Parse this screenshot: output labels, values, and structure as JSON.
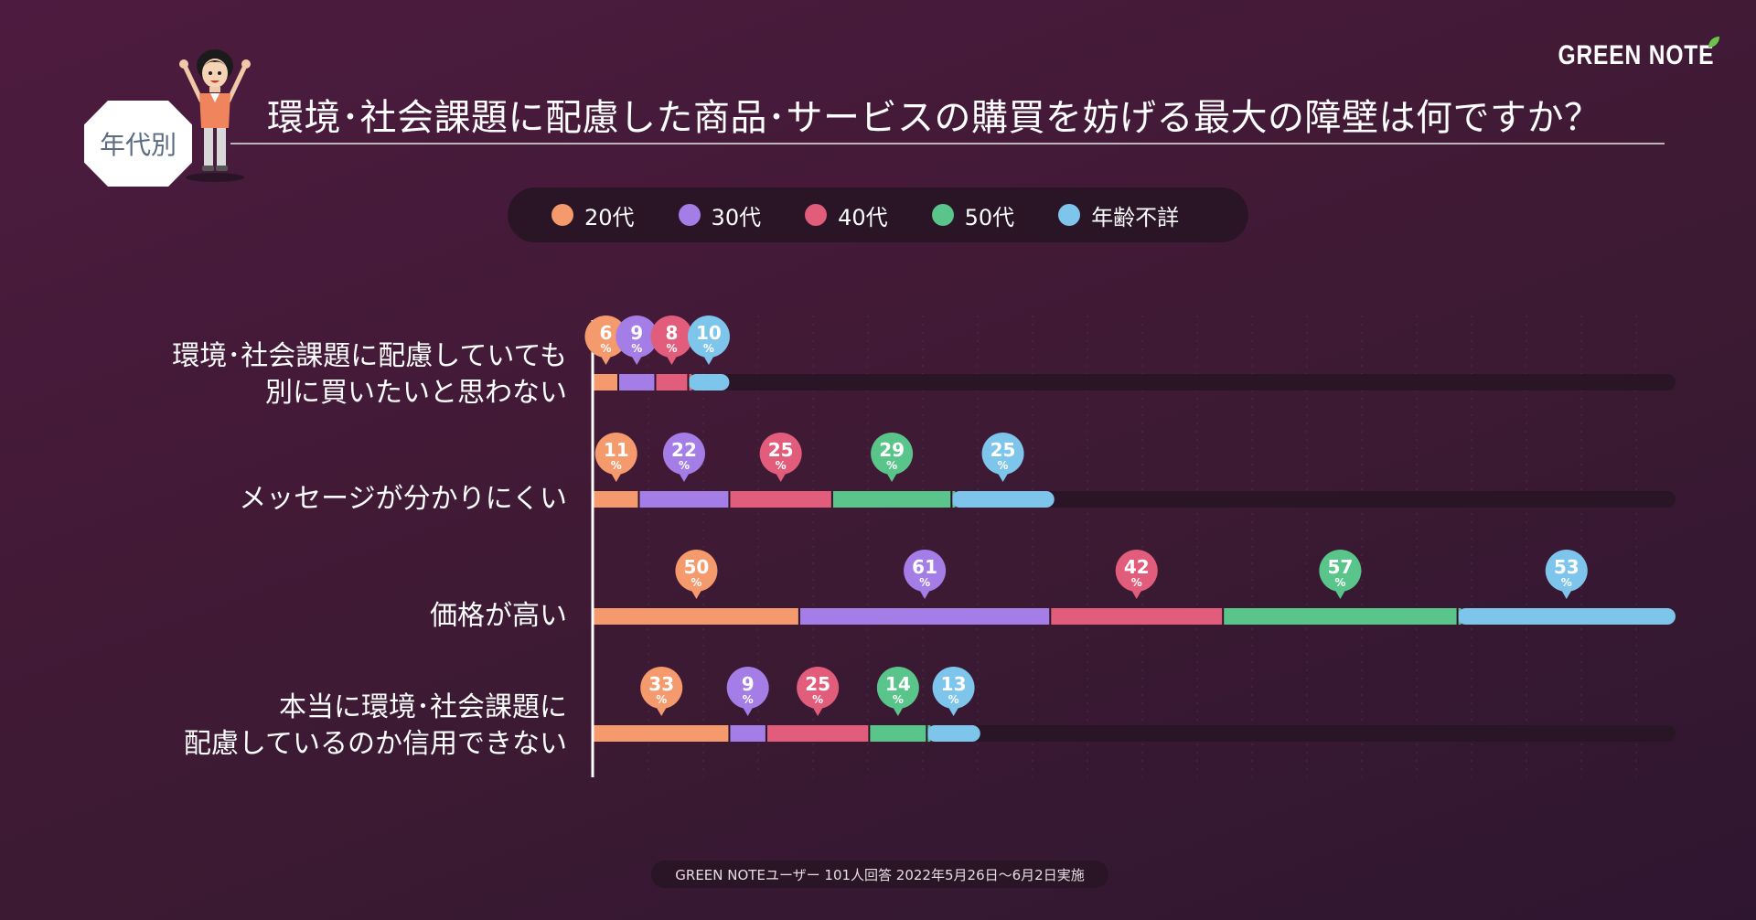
{
  "brand": "GREEN NOTE",
  "tag": "年代別",
  "title": "環境･社会課題に配慮した商品･サービスの購買を妨げる最大の障壁は何ですか？",
  "footer": "GREEN NOTEユーザー 101人回答 2022年5月26日〜6月2日実施",
  "colors": {
    "background": "#3d1a33",
    "track": "#2a1526",
    "series": [
      "#f49a6c",
      "#a47de6",
      "#e25c7b",
      "#5ac58a",
      "#7ec5ec"
    ]
  },
  "icons": [
    "leaf-icon",
    "mascot-illustration"
  ],
  "chart_data": {
    "type": "bar",
    "stacked": true,
    "orientation": "horizontal",
    "unit": "%",
    "categories": [
      [
        "環境･社会課題に配慮していても",
        "別に買いたいと思わない"
      ],
      [
        "メッセージが分かりにくい"
      ],
      [
        "価格が高い"
      ],
      [
        "本当に環境･社会課題に",
        "配慮しているのか信用できない"
      ]
    ],
    "series": [
      {
        "name": "20代",
        "values": [
          6,
          11,
          50,
          33
        ]
      },
      {
        "name": "30代",
        "values": [
          9,
          22,
          61,
          9
        ]
      },
      {
        "name": "40代",
        "values": [
          8,
          25,
          42,
          25
        ]
      },
      {
        "name": "50代",
        "values": [
          0,
          29,
          57,
          14
        ]
      },
      {
        "name": "年齢不詳",
        "values": [
          10,
          25,
          53,
          13
        ]
      }
    ],
    "xlim": [
      0,
      263
    ],
    "grid": true,
    "legend_position": "top"
  }
}
